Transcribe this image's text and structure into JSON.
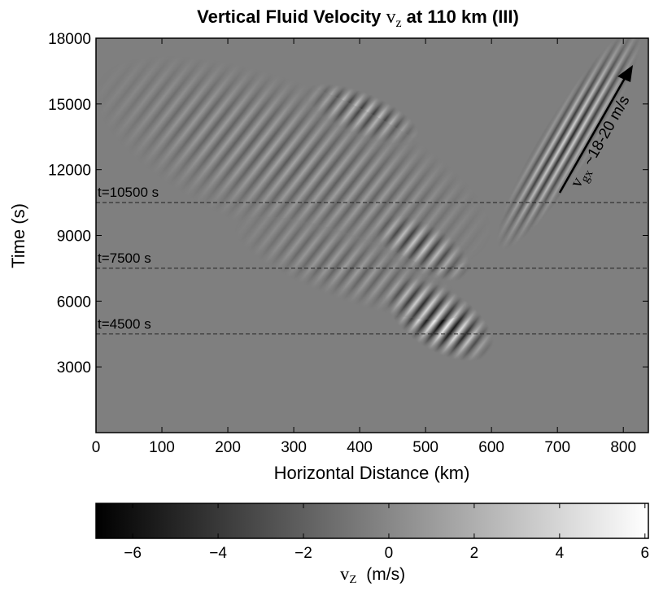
{
  "chart_data": {
    "type": "heatmap",
    "title": {
      "before": "Vertical Fluid Velocity ",
      "symbol": "v",
      "subscript": "z",
      "after": " at 110 km (III)"
    },
    "xlabel": "Horizontal Distance (km)",
    "ylabel": "Time (s)",
    "xlim": [
      0,
      838
    ],
    "xticks": [
      0,
      100,
      200,
      300,
      400,
      500,
      600,
      700,
      800
    ],
    "ylim": [
      0,
      18000
    ],
    "yticks": [
      3000,
      6000,
      9000,
      12000,
      15000,
      18000
    ],
    "colormap": "gray",
    "hlines": [
      {
        "value": 4500,
        "label": "t=4500 s"
      },
      {
        "value": 7500,
        "label": "t=7500 s"
      },
      {
        "value": 10500,
        "label": "t=10500 s"
      }
    ],
    "annotation": {
      "symbol": "v",
      "subscript": "gx",
      "text": " ~18-20 m/s"
    },
    "colorbar": {
      "clim": [
        -6.86,
        6.08
      ],
      "ticks": [
        {
          "value": -6,
          "label": "−6"
        },
        {
          "value": -4,
          "label": "−4"
        },
        {
          "value": -2,
          "label": "−2"
        },
        0,
        2,
        4,
        6
      ],
      "label": {
        "symbol": "v",
        "subscript": "Z",
        "text": "  (m/s)"
      }
    }
  }
}
